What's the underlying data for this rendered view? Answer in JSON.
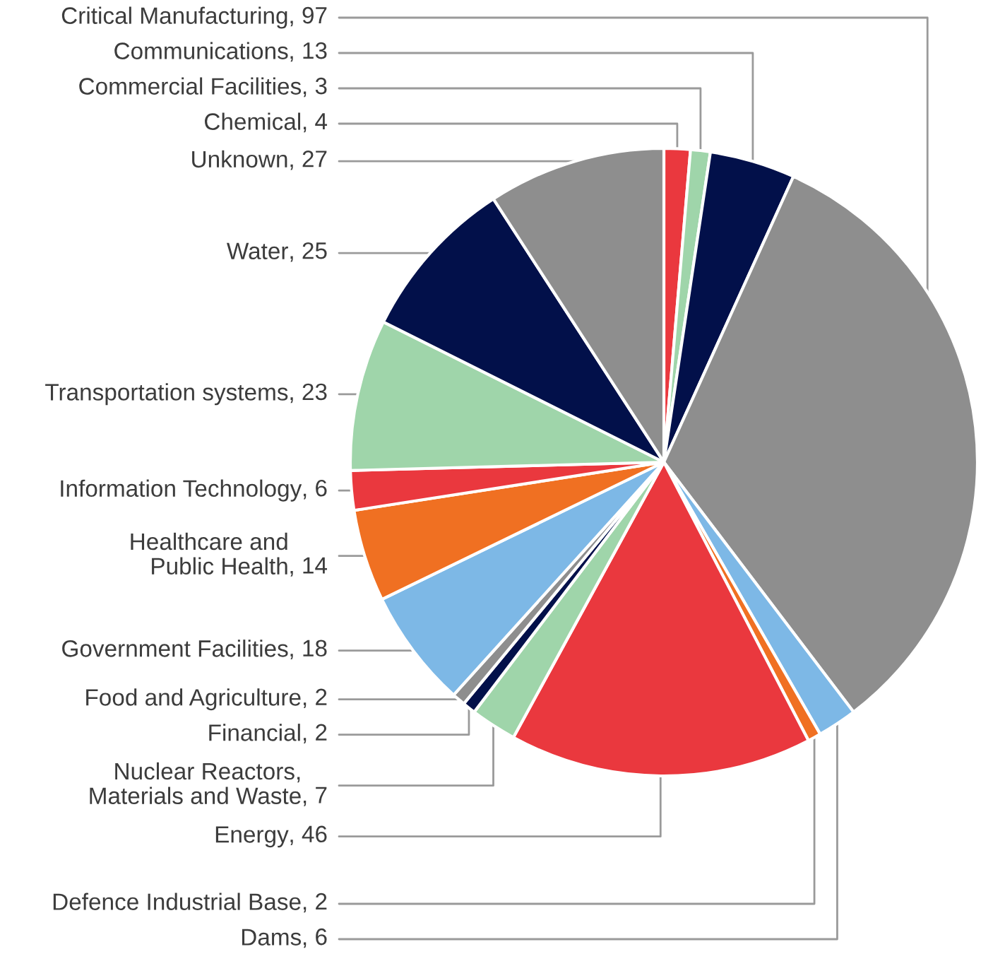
{
  "chart_data": {
    "type": "pie",
    "categories": [
      "Chemical",
      "Commercial Facilities",
      "Communications",
      "Critical Manufacturing",
      "Dams",
      "Defence Industrial Base",
      "Energy",
      "Nuclear Reactors, Materials and Waste",
      "Financial",
      "Food and Agriculture",
      "Government Facilities",
      "Healthcare and Public Health",
      "Information Technology",
      "Transportation systems",
      "Water",
      "Unknown"
    ],
    "values": [
      4,
      3,
      13,
      97,
      6,
      2,
      46,
      7,
      2,
      2,
      18,
      14,
      6,
      23,
      25,
      27
    ],
    "value_labels": [
      ", 4",
      ", 3",
      ", 13",
      ", 97",
      ", 6",
      ", 2",
      ", 46",
      ", 7",
      ", 2",
      ", 2",
      ", 18",
      ", 14",
      ", 6",
      ", 23",
      ", 25",
      ", 27"
    ],
    "colors": [
      "#ea383e",
      "#9fd5aa",
      "#02104a",
      "#8e8e8e",
      "#7db8e6",
      "#f07022",
      "#ea383e",
      "#9fd5aa",
      "#02104a",
      "#8e8e8e",
      "#7db8e6",
      "#f07022",
      "#ea383e",
      "#9fd5aa",
      "#02104a",
      "#8e8e8e"
    ]
  }
}
